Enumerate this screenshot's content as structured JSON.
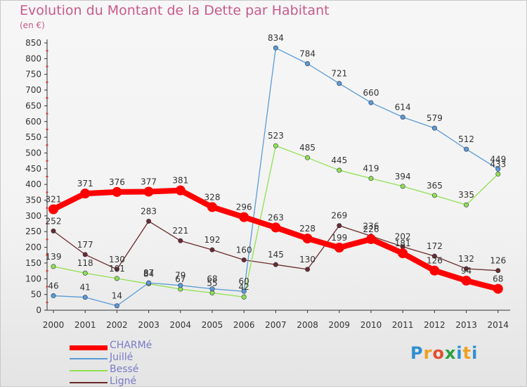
{
  "chart_data": {
    "type": "line",
    "title": "Evolution du Montant de la Dette par Habitant",
    "subtitle": "(en €)",
    "x": [
      "2000",
      "2001",
      "2002",
      "2003",
      "2004",
      "2005",
      "2006",
      "2007",
      "2008",
      "2009",
      "2010",
      "2011",
      "2012",
      "2013",
      "2014"
    ],
    "ylim": [
      0,
      850
    ],
    "yticks": [
      0,
      50,
      100,
      150,
      200,
      250,
      300,
      350,
      400,
      450,
      500,
      550,
      600,
      650,
      700,
      750,
      800,
      850
    ],
    "grid": false,
    "legend_position": "bottom-left",
    "series": [
      {
        "name": "CHARMé",
        "color": "#ff0000",
        "values": [
          321,
          371,
          376,
          377,
          381,
          328,
          296,
          263,
          228,
          199,
          226,
          181,
          126,
          94,
          68
        ]
      },
      {
        "name": "Juillé",
        "color": "#5a9bd4",
        "values": [
          46,
          41,
          14,
          87,
          79,
          68,
          60,
          834,
          784,
          721,
          660,
          614,
          579,
          512,
          449
        ]
      },
      {
        "name": "Bessé",
        "color": "#90e050",
        "values": [
          139,
          118,
          101,
          84,
          67,
          55,
          42,
          523,
          485,
          445,
          419,
          394,
          365,
          335,
          433
        ]
      },
      {
        "name": "Ligné",
        "color": "#6b2a2a",
        "values": [
          252,
          177,
          130,
          283,
          221,
          192,
          160,
          145,
          130,
          269,
          236,
          202,
          172,
          132,
          126
        ]
      }
    ]
  },
  "legend_color": "#7a7ac8",
  "logo": {
    "p": "P",
    "r": "r",
    "o": "o",
    "x": "x",
    "i": "i",
    "t": "t",
    "i2": "i"
  }
}
